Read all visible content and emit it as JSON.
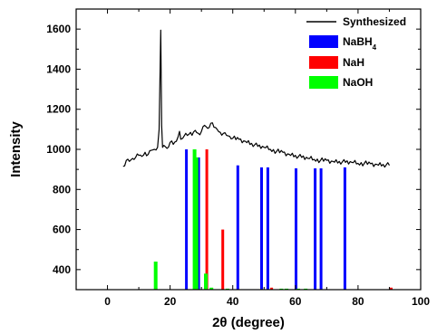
{
  "chart_data": {
    "type": "line",
    "xlabel": "2θ (degree)",
    "ylabel": "Intensity",
    "xlim": [
      -10,
      100
    ],
    "ylim": [
      300,
      1700
    ],
    "x_ticks": [
      0,
      20,
      40,
      60,
      80,
      100
    ],
    "y_ticks": [
      400,
      600,
      800,
      1000,
      1200,
      1400,
      1600
    ],
    "grid": false,
    "legend_position": "top-right",
    "legend": [
      {
        "label": "Synthesized",
        "subscript": "",
        "color": "#000000",
        "kind": "line"
      },
      {
        "label": "NaBH",
        "subscript": "4",
        "color": "#0000ff",
        "kind": "box"
      },
      {
        "label": "NaH",
        "subscript": "",
        "color": "#ff0000",
        "kind": "box"
      },
      {
        "label": "NaOH",
        "subscript": "",
        "color": "#00ff00",
        "kind": "box"
      }
    ],
    "synthesized": {
      "name": "Synthesized",
      "color": "#000000",
      "x": [
        5,
        6,
        7,
        8,
        9,
        10,
        11,
        12,
        13,
        14,
        15,
        16,
        16.5,
        17,
        17.3,
        17.6,
        18,
        19,
        20,
        21,
        22,
        23,
        23.4,
        24,
        25,
        26,
        27,
        28,
        29,
        30,
        31,
        32,
        33,
        34,
        35,
        36,
        37,
        38,
        39,
        40,
        42,
        44,
        46,
        48,
        50,
        52,
        54,
        56,
        58,
        60,
        62,
        64,
        66,
        68,
        70,
        72,
        74,
        76,
        78,
        80,
        82,
        84,
        86,
        88,
        90
      ],
      "y": [
        915,
        945,
        940,
        955,
        960,
        970,
        965,
        985,
        975,
        995,
        1000,
        1010,
        1100,
        1595,
        1120,
        1010,
        1020,
        1005,
        1035,
        1025,
        1040,
        1090,
        1050,
        1055,
        1080,
        1075,
        1070,
        1095,
        1080,
        1090,
        1120,
        1105,
        1130,
        1110,
        1100,
        1085,
        1080,
        1070,
        1065,
        1055,
        1050,
        1040,
        1030,
        1015,
        1010,
        1000,
        990,
        985,
        975,
        970,
        960,
        955,
        950,
        945,
        945,
        940,
        940,
        935,
        935,
        930,
        930,
        928,
        925,
        925,
        920
      ]
    },
    "reference_series": [
      {
        "name": "NaBH4",
        "color": "#0000ff",
        "x": [
          25.2,
          29.1,
          41.6,
          49.2,
          51.2,
          60.2,
          66.3,
          68.2,
          75.8
        ],
        "y": [
          1000,
          960,
          920,
          910,
          910,
          905,
          905,
          905,
          910
        ]
      },
      {
        "name": "NaH",
        "color": "#ff0000",
        "x": [
          31.7,
          36.8,
          52.4,
          90.6
        ],
        "y": [
          1000,
          600,
          310,
          310
        ]
      },
      {
        "name": "NaOH",
        "color": "#00ff00",
        "x": [
          15.4,
          27.8,
          28.4,
          31.4,
          33.2,
          38.3,
          55.5,
          57.2,
          60.9,
          63.3
        ],
        "y": [
          440,
          1000,
          960,
          380,
          310,
          305,
          305,
          305,
          305,
          305
        ]
      }
    ]
  }
}
